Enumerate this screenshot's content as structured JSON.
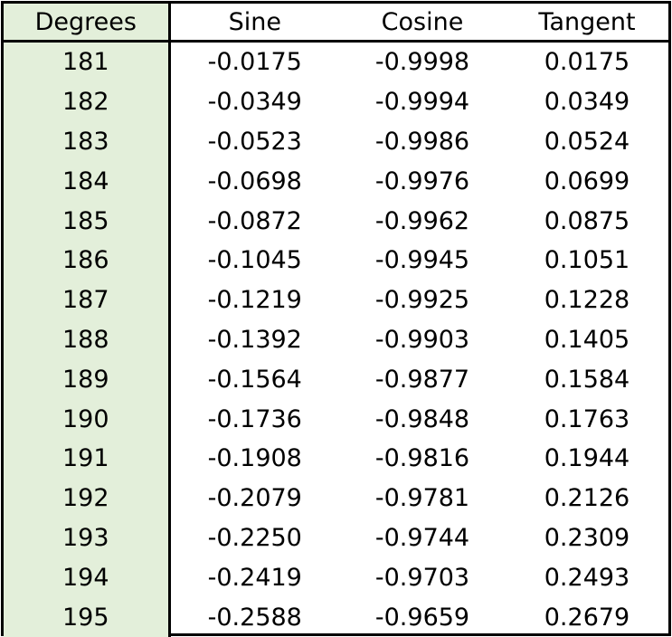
{
  "table": {
    "headers": [
      "Degrees",
      "Sine",
      "Cosine",
      "Tangent"
    ],
    "rows": [
      [
        "181",
        "-0.0175",
        "-0.9998",
        "0.0175"
      ],
      [
        "182",
        "-0.0349",
        "-0.9994",
        "0.0349"
      ],
      [
        "183",
        "-0.0523",
        "-0.9986",
        "0.0524"
      ],
      [
        "184",
        "-0.0698",
        "-0.9976",
        "0.0699"
      ],
      [
        "185",
        "-0.0872",
        "-0.9962",
        "0.0875"
      ],
      [
        "186",
        "-0.1045",
        "-0.9945",
        "0.1051"
      ],
      [
        "187",
        "-0.1219",
        "-0.9925",
        "0.1228"
      ],
      [
        "188",
        "-0.1392",
        "-0.9903",
        "0.1405"
      ],
      [
        "189",
        "-0.1564",
        "-0.9877",
        "0.1584"
      ],
      [
        "190",
        "-0.1736",
        "-0.9848",
        "0.1763"
      ],
      [
        "191",
        "-0.1908",
        "-0.9816",
        "0.1944"
      ],
      [
        "192",
        "-0.2079",
        "-0.9781",
        "0.2126"
      ],
      [
        "193",
        "-0.2250",
        "-0.9744",
        "0.2309"
      ],
      [
        "194",
        "-0.2419",
        "-0.9703",
        "0.2493"
      ],
      [
        "195",
        "-0.2588",
        "-0.9659",
        "0.2679"
      ]
    ]
  },
  "colors": {
    "degrees_column_fill": "#e3efda",
    "border": "#000000"
  }
}
